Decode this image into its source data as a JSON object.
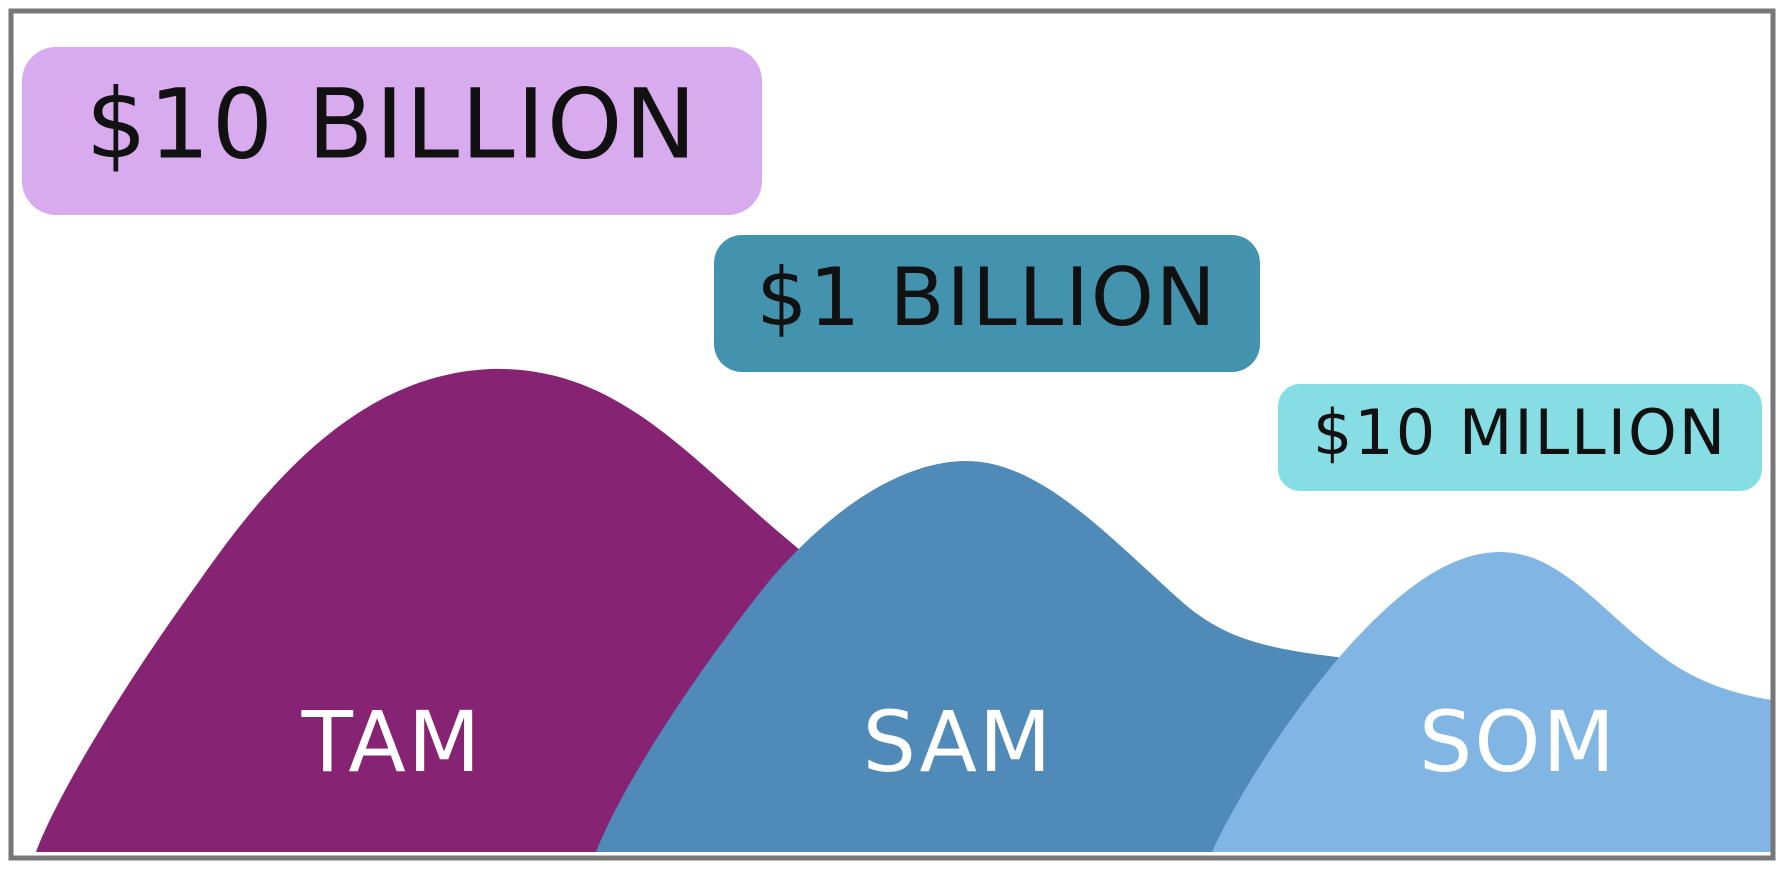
{
  "diagram": {
    "markets": [
      {
        "name": "TAM",
        "value": "$10 BILLION",
        "hill_color": "#862373",
        "box_color": "#d8aaee"
      },
      {
        "name": "SAM",
        "value": "$1 BILLION",
        "hill_color": "#508ab9",
        "box_color": "#4493ae"
      },
      {
        "name": "SOM",
        "value": "$10 MILLION",
        "hill_color": "#81b5e4",
        "box_color": "#86dee4"
      }
    ],
    "colors": {
      "border": "#777777",
      "value_text": "#111111",
      "market_text": "#ffffff"
    }
  }
}
